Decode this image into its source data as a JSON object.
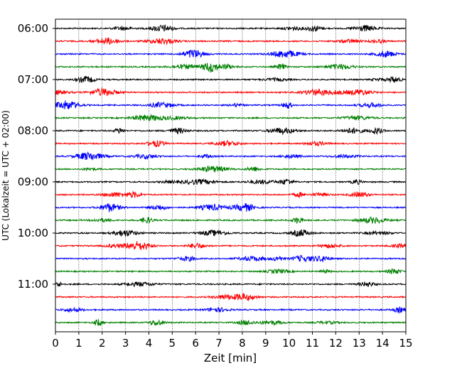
{
  "chart_data": {
    "type": "line",
    "title": "",
    "xlabel": "Zeit  [min]",
    "ylabel": "UTC (Lokalzeit = UTC + 02:00)",
    "xlim": [
      0,
      15
    ],
    "x_ticks": [
      "0",
      "1",
      "2",
      "3",
      "4",
      "5",
      "6",
      "7",
      "8",
      "9",
      "10",
      "11",
      "12",
      "13",
      "14",
      "15"
    ],
    "y_ticks": [
      "06:00",
      "07:00",
      "08:00",
      "09:00",
      "10:00",
      "11:00"
    ],
    "trace_start_times": [
      "06:00",
      "06:15",
      "06:30",
      "06:45",
      "07:00",
      "07:15",
      "07:30",
      "07:45",
      "08:00",
      "08:15",
      "08:30",
      "08:45",
      "09:00",
      "09:15",
      "09:30",
      "09:45",
      "10:00",
      "10:15",
      "10:30",
      "10:45",
      "11:00",
      "11:15",
      "11:30",
      "11:45"
    ],
    "trace_colors": [
      "#000000",
      "#ff0000",
      "#0000ff",
      "#008000"
    ],
    "x_grid": true,
    "y_grid": false
  }
}
